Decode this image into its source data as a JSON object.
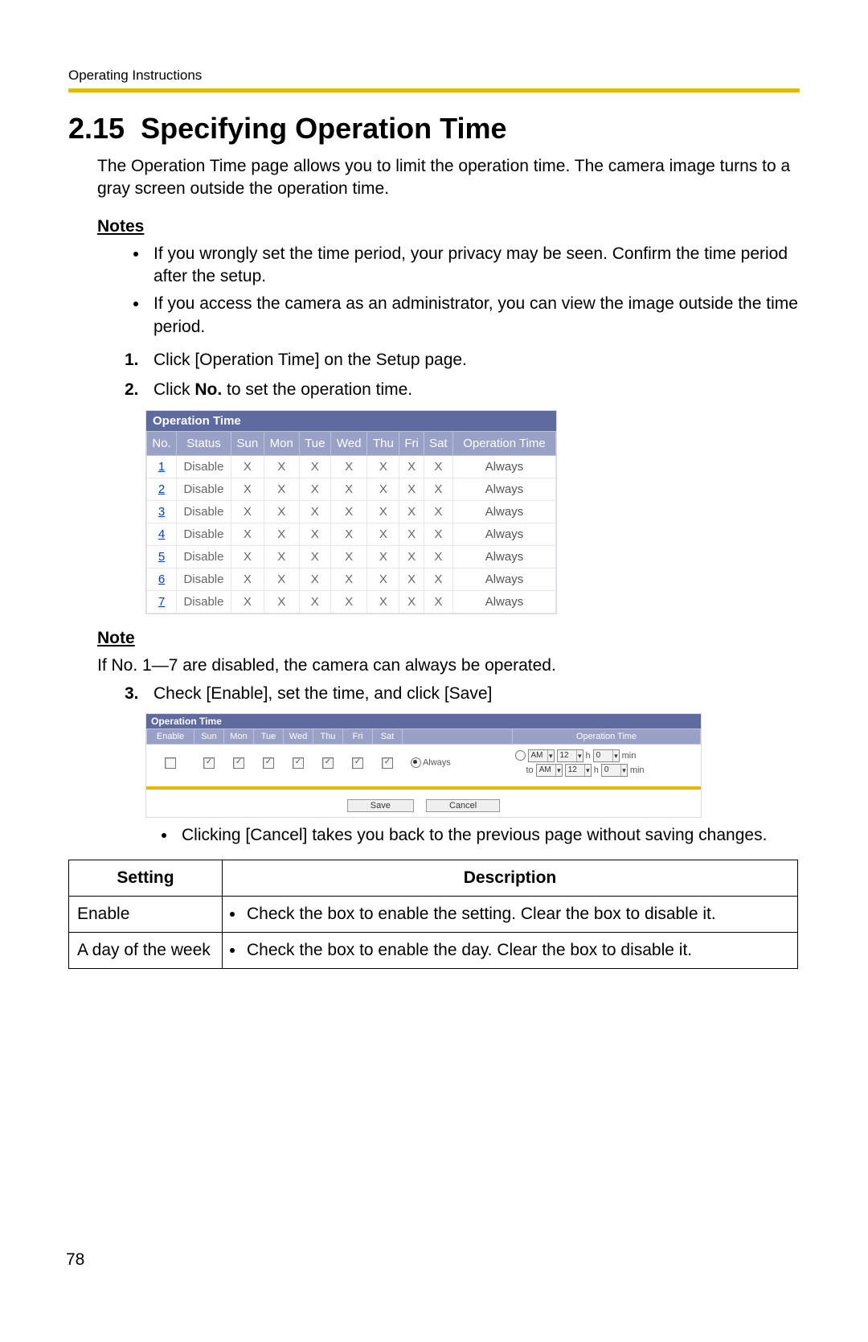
{
  "header": {
    "label": "Operating Instructions"
  },
  "rule_color": "#e6b800",
  "section": {
    "number": "2.15",
    "title": "Specifying Operation Time"
  },
  "intro": "The Operation Time page allows you to limit the operation time. The camera image turns to a gray screen outside the operation time.",
  "notes_heading": "Notes",
  "notes": [
    "If you wrongly set the time period, your privacy may be seen. Confirm the time period after the setup.",
    "If you access the camera as an administrator, you can view the image outside the time period."
  ],
  "steps": {
    "s1": {
      "num": "1.",
      "text": "Click [Operation Time] on the Setup page."
    },
    "s2": {
      "num": "2.",
      "pre": "Click ",
      "bold": "No.",
      "post": " to set the operation time."
    },
    "s3": {
      "num": "3.",
      "text": "Check [Enable], set the time, and click [Save]"
    }
  },
  "op_table": {
    "title": "Operation Time",
    "title_bg": "#5f6b9e",
    "header_bg": "#99a2c6",
    "headers": [
      "No.",
      "Status",
      "Sun",
      "Mon",
      "Tue",
      "Wed",
      "Thu",
      "Fri",
      "Sat",
      "Operation Time"
    ],
    "rows": [
      {
        "no": "1",
        "status": "Disable",
        "sun": "X",
        "mon": "X",
        "tue": "X",
        "wed": "X",
        "thu": "X",
        "fri": "X",
        "sat": "X",
        "ot": "Always"
      },
      {
        "no": "2",
        "status": "Disable",
        "sun": "X",
        "mon": "X",
        "tue": "X",
        "wed": "X",
        "thu": "X",
        "fri": "X",
        "sat": "X",
        "ot": "Always"
      },
      {
        "no": "3",
        "status": "Disable",
        "sun": "X",
        "mon": "X",
        "tue": "X",
        "wed": "X",
        "thu": "X",
        "fri": "X",
        "sat": "X",
        "ot": "Always"
      },
      {
        "no": "4",
        "status": "Disable",
        "sun": "X",
        "mon": "X",
        "tue": "X",
        "wed": "X",
        "thu": "X",
        "fri": "X",
        "sat": "X",
        "ot": "Always"
      },
      {
        "no": "5",
        "status": "Disable",
        "sun": "X",
        "mon": "X",
        "tue": "X",
        "wed": "X",
        "thu": "X",
        "fri": "X",
        "sat": "X",
        "ot": "Always"
      },
      {
        "no": "6",
        "status": "Disable",
        "sun": "X",
        "mon": "X",
        "tue": "X",
        "wed": "X",
        "thu": "X",
        "fri": "X",
        "sat": "X",
        "ot": "Always"
      },
      {
        "no": "7",
        "status": "Disable",
        "sun": "X",
        "mon": "X",
        "tue": "X",
        "wed": "X",
        "thu": "X",
        "fri": "X",
        "sat": "X",
        "ot": "Always"
      }
    ]
  },
  "note_heading": "Note",
  "note_text": "If No. 1—7 are disabled, the camera can always be operated.",
  "op2_table": {
    "title": "Operation Time",
    "headers": [
      "Enable",
      "Sun",
      "Mon",
      "Tue",
      "Wed",
      "Thu",
      "Fri",
      "Sat",
      "",
      "Operation Time"
    ],
    "enable_checked": false,
    "days_checked": [
      true,
      true,
      true,
      true,
      true,
      true,
      true
    ],
    "always_label": "Always",
    "time_from": {
      "ampm": "AM",
      "h": "12",
      "h_label": "h",
      "m": "0",
      "m_label": "min"
    },
    "time_to_prefix": "to",
    "time_to": {
      "ampm": "AM",
      "h": "12",
      "h_label": "h",
      "m": "0",
      "m_label": "min"
    },
    "save_label": "Save",
    "cancel_label": "Cancel"
  },
  "cancel_note": "Clicking [Cancel] takes you back to the previous page without saving changes.",
  "settings_table": {
    "col1": "Setting",
    "col2": "Description",
    "rows": [
      {
        "setting": "Enable",
        "desc": "Check the box to enable the setting. Clear the box to disable it."
      },
      {
        "setting": "A day of the week",
        "desc": "Check the box to enable the day. Clear the box to disable it."
      }
    ]
  },
  "page_number": "78"
}
